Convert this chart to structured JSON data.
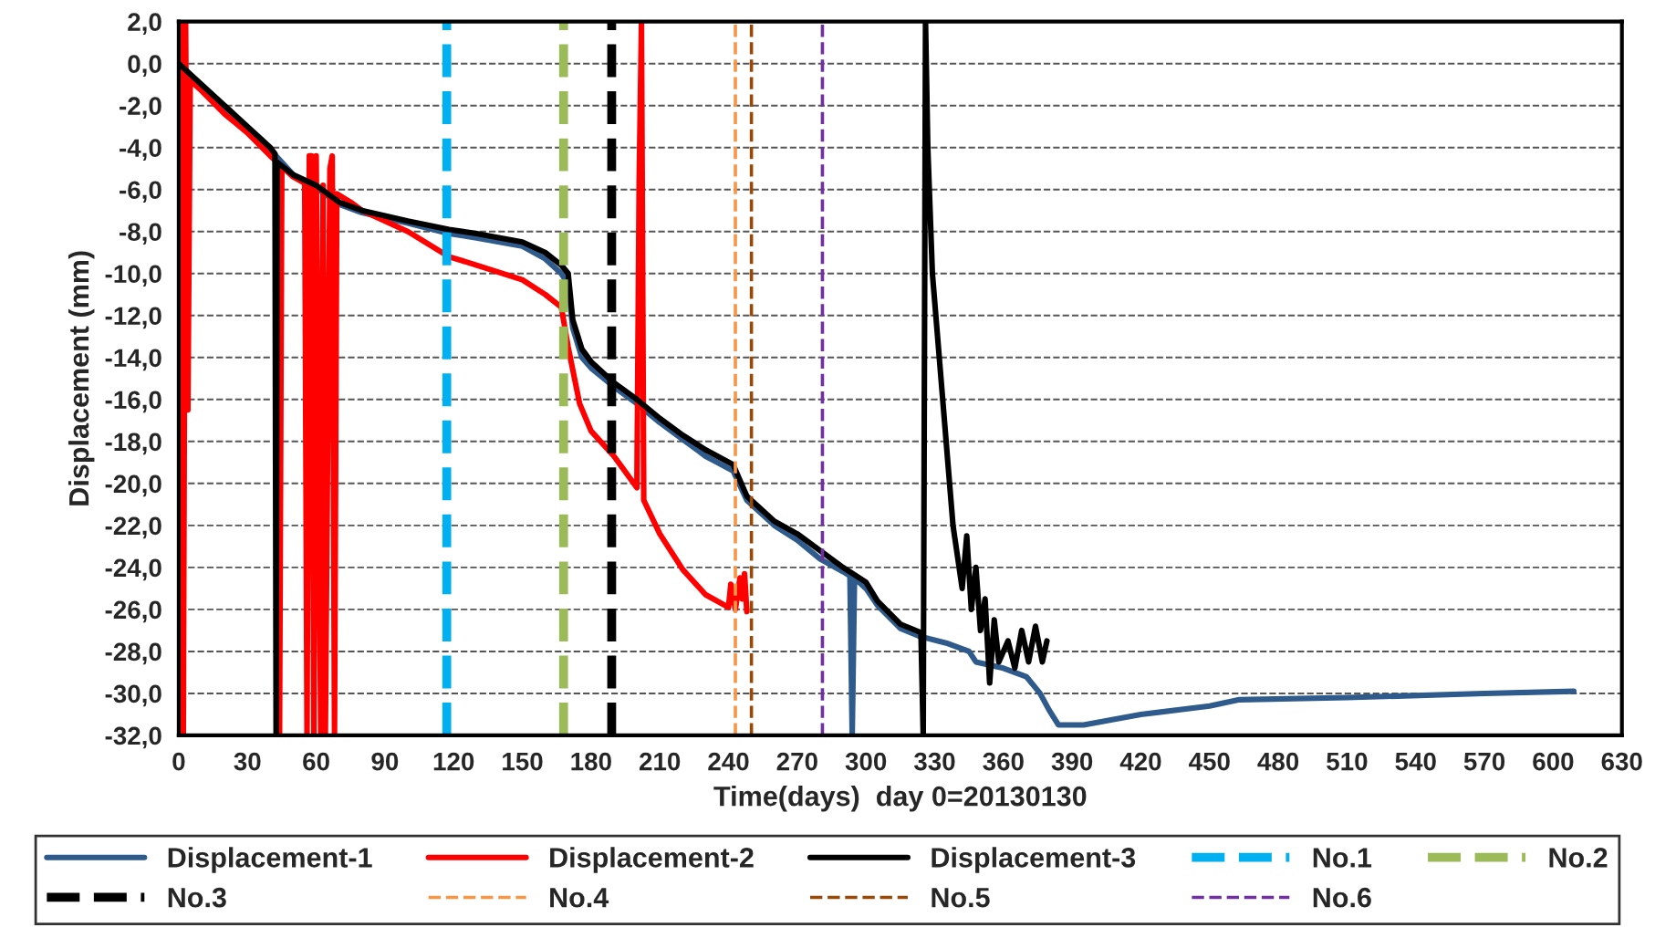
{
  "chart_data": {
    "type": "line",
    "xlabel": "Time(days)  day 0=20130130",
    "ylabel": "Displacement (mm)",
    "xlim": [
      0,
      630
    ],
    "xticks": [
      0,
      30,
      60,
      90,
      120,
      150,
      180,
      210,
      240,
      270,
      300,
      330,
      360,
      390,
      420,
      450,
      480,
      510,
      540,
      570,
      600,
      630
    ],
    "ylim": [
      -32,
      2
    ],
    "yticks": [
      {
        "value": 2,
        "label": "2,0"
      },
      {
        "value": 0,
        "label": "0,0"
      },
      {
        "value": -2,
        "label": "-2,0"
      },
      {
        "value": -4,
        "label": "-4,0"
      },
      {
        "value": -6,
        "label": "-6,0"
      },
      {
        "value": -8,
        "label": "-8,0"
      },
      {
        "value": -10,
        "label": "-10,0"
      },
      {
        "value": -12,
        "label": "-12,0"
      },
      {
        "value": -14,
        "label": "-14,0"
      },
      {
        "value": -16,
        "label": "-16,0"
      },
      {
        "value": -18,
        "label": "-18,0"
      },
      {
        "value": -20,
        "label": "-20,0"
      },
      {
        "value": -22,
        "label": "-22,0"
      },
      {
        "value": -24,
        "label": "-24,0"
      },
      {
        "value": -26,
        "label": "-26,0"
      },
      {
        "value": -28,
        "label": "-28,0"
      },
      {
        "value": -30,
        "label": "-30,0"
      },
      {
        "value": -32,
        "label": "-32,0"
      }
    ],
    "grid": "y",
    "legend": "bottom",
    "marker": "none",
    "series": [
      {
        "name": "Displacement-1",
        "color": "#2e5a8c",
        "x": [
          0,
          10,
          20,
          30,
          40,
          50,
          60,
          70,
          80,
          100,
          118,
          130,
          150,
          160,
          167,
          170,
          172,
          176,
          180,
          190,
          200,
          210,
          220,
          230,
          242,
          248,
          260,
          270,
          280,
          290,
          293,
          294,
          295,
          300,
          305,
          315,
          324,
          335,
          345,
          348,
          360,
          370,
          376,
          380,
          384,
          395,
          420,
          450,
          463,
          510,
          570,
          609
        ],
        "values": [
          0,
          -1.1,
          -2.1,
          -3.1,
          -4.1,
          -5.3,
          -5.9,
          -6.7,
          -7.1,
          -7.6,
          -8.1,
          -8.3,
          -8.7,
          -9.3,
          -10.0,
          -10.5,
          -12.6,
          -14.0,
          -14.5,
          -15.4,
          -16.2,
          -17.1,
          -17.9,
          -18.7,
          -19.4,
          -20.8,
          -22.0,
          -22.7,
          -23.6,
          -24.2,
          -24.4,
          -32,
          -24.5,
          -25.0,
          -25.8,
          -26.9,
          -27.3,
          -27.6,
          -28.0,
          -28.5,
          -28.8,
          -29.2,
          -30.0,
          -30.8,
          -31.5,
          -31.5,
          -31.0,
          -30.6,
          -30.3,
          -30.2,
          -30.0,
          -29.9
        ]
      },
      {
        "name": "Displacement-2",
        "color": "#ff0000",
        "x": [
          0,
          1,
          2,
          3,
          4,
          5,
          10,
          20,
          30,
          40,
          43,
          44,
          45,
          50,
          55,
          56,
          57,
          58,
          59,
          60,
          62,
          63,
          64,
          66,
          67,
          68,
          69,
          75,
          80,
          100,
          118,
          130,
          150,
          160,
          167,
          170,
          175,
          180,
          190,
          200,
          201,
          202,
          203,
          210,
          220,
          230,
          240,
          241,
          243,
          245,
          246,
          247,
          248
        ],
        "values": [
          0,
          2.0,
          -32,
          2.0,
          -16.5,
          -0.8,
          -1.3,
          -2.4,
          -3.3,
          -4.4,
          -4.7,
          -32,
          -4.9,
          -5.4,
          -5.7,
          -32,
          -4.4,
          -4.4,
          -32,
          -4.4,
          -32,
          -5.8,
          -32,
          -5.0,
          -4.4,
          -32,
          -6.2,
          -6.6,
          -7.0,
          -8.0,
          -9.2,
          -9.6,
          -10.3,
          -11.0,
          -11.6,
          -13.5,
          -16.2,
          -17.5,
          -18.7,
          -20.2,
          -5.5,
          2.0,
          -20.8,
          -22.4,
          -24.1,
          -25.3,
          -25.9,
          -24.8,
          -26.0,
          -24.5,
          -25.5,
          -24.3,
          -26.1
        ]
      },
      {
        "name": "Displacement-3",
        "color": "#000000",
        "x": [
          0,
          10,
          20,
          30,
          40,
          42,
          42.5,
          43,
          50,
          60,
          70,
          80,
          100,
          118,
          130,
          150,
          160,
          167,
          170,
          172,
          176,
          180,
          190,
          200,
          210,
          220,
          230,
          242,
          248,
          260,
          270,
          280,
          290,
          300,
          305,
          315,
          324,
          325,
          326,
          327,
          329,
          332,
          335,
          338,
          340,
          342,
          344,
          346,
          348,
          350,
          352,
          354,
          356,
          358,
          362,
          365,
          368,
          371,
          374,
          377,
          379
        ],
        "values": [
          0,
          -1.0,
          -2.0,
          -3.0,
          -4.0,
          -4.3,
          -32,
          -4.7,
          -5.3,
          -5.8,
          -6.6,
          -7.0,
          -7.5,
          -7.9,
          -8.1,
          -8.5,
          -9.0,
          -9.6,
          -10.0,
          -12.2,
          -13.6,
          -14.2,
          -15.2,
          -16.0,
          -16.9,
          -17.7,
          -18.4,
          -19.1,
          -20.6,
          -21.8,
          -22.4,
          -23.2,
          -24.0,
          -24.7,
          -25.6,
          -26.7,
          -27.1,
          -32,
          2.0,
          -4,
          -10,
          -14,
          -18,
          -22,
          -23.5,
          -25,
          -22.5,
          -26,
          -24,
          -27,
          -25.5,
          -29.5,
          -26.5,
          -28.5,
          -27.5,
          -28.8,
          -27,
          -28.5,
          -26.8,
          -28.5,
          -27.5
        ]
      }
    ],
    "ref_lines": [
      {
        "axis": "x",
        "value": 117,
        "label": "No.1",
        "color": "#00b0f0",
        "line_style": "dashed"
      },
      {
        "axis": "x",
        "value": 168,
        "label": "No.2",
        "color": "#9bbb59",
        "line_style": "dashed"
      },
      {
        "axis": "x",
        "value": 189,
        "label": "No.3",
        "color": "#000000",
        "line_style": "dashed"
      },
      {
        "axis": "x",
        "value": 243,
        "label": "No.4",
        "color": "#f79646",
        "line_style": "dashed"
      },
      {
        "axis": "x",
        "value": 250,
        "label": "No.5",
        "color": "#984807",
        "line_style": "dashed"
      },
      {
        "axis": "x",
        "value": 281,
        "label": "No.6",
        "color": "#7030a0",
        "line_style": "dashed"
      }
    ]
  }
}
